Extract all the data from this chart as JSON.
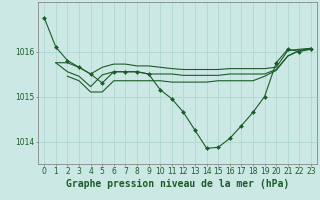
{
  "background_color": "#cce8e4",
  "grid_color": "#aad4cc",
  "line_color": "#1a5c28",
  "marker_color": "#1a5c28",
  "xlabel": "Graphe pression niveau de la mer (hPa)",
  "xlabel_fontsize": 7,
  "tick_fontsize": 5.5,
  "xlim": [
    -0.5,
    23.5
  ],
  "ylim": [
    1013.5,
    1017.1
  ],
  "yticks": [
    1014,
    1015,
    1016
  ],
  "xticks": [
    0,
    1,
    2,
    3,
    4,
    5,
    6,
    7,
    8,
    9,
    10,
    11,
    12,
    13,
    14,
    15,
    16,
    17,
    18,
    19,
    20,
    21,
    22,
    23
  ],
  "series": [
    {
      "x": [
        0,
        1,
        2,
        3,
        4,
        5,
        6,
        7,
        8,
        9,
        10,
        11,
        12,
        13,
        14,
        15,
        16,
        17,
        18,
        19,
        20,
        21,
        22,
        23
      ],
      "y": [
        1016.75,
        1016.1,
        1015.8,
        1015.65,
        1015.5,
        1015.3,
        1015.55,
        1015.55,
        1015.55,
        1015.5,
        1015.15,
        1014.95,
        1014.65,
        1014.25,
        1013.85,
        1013.87,
        1014.07,
        1014.35,
        1014.65,
        1015.0,
        1015.75,
        1016.05,
        1016.0,
        1016.05
      ],
      "marker": "D",
      "markersize": 2.0,
      "linewidth": 0.8
    },
    {
      "x": [
        1,
        2,
        3,
        4,
        5,
        6,
        7,
        8,
        9,
        10,
        11,
        12,
        13,
        14,
        15,
        16,
        17,
        18,
        19,
        20,
        21,
        22,
        23
      ],
      "y": [
        1015.75,
        1015.75,
        1015.65,
        1015.5,
        1015.65,
        1015.72,
        1015.72,
        1015.68,
        1015.68,
        1015.65,
        1015.62,
        1015.6,
        1015.6,
        1015.6,
        1015.6,
        1015.62,
        1015.62,
        1015.62,
        1015.62,
        1015.65,
        1016.02,
        1016.05,
        1016.07
      ],
      "marker": null,
      "markersize": 0,
      "linewidth": 0.8
    },
    {
      "x": [
        1,
        2,
        3,
        4,
        5,
        6,
        7,
        8,
        9,
        10,
        11,
        12,
        13,
        14,
        15,
        16,
        17,
        18,
        19,
        20,
        21,
        22,
        23
      ],
      "y": [
        1015.75,
        1015.55,
        1015.45,
        1015.22,
        1015.48,
        1015.55,
        1015.55,
        1015.55,
        1015.5,
        1015.5,
        1015.5,
        1015.47,
        1015.47,
        1015.47,
        1015.47,
        1015.5,
        1015.5,
        1015.5,
        1015.5,
        1015.6,
        1015.9,
        1016.02,
        1016.07
      ],
      "marker": null,
      "markersize": 0,
      "linewidth": 0.8
    },
    {
      "x": [
        2,
        3,
        4,
        5,
        6,
        7,
        8,
        9,
        10,
        11,
        12,
        13,
        14,
        15,
        16,
        17,
        18,
        19,
        20,
        21,
        22,
        23
      ],
      "y": [
        1015.45,
        1015.35,
        1015.1,
        1015.1,
        1015.35,
        1015.35,
        1015.35,
        1015.35,
        1015.35,
        1015.32,
        1015.32,
        1015.32,
        1015.32,
        1015.35,
        1015.35,
        1015.35,
        1015.35,
        1015.45,
        1015.58,
        1015.9,
        1016.02,
        1016.07
      ],
      "marker": null,
      "markersize": 0,
      "linewidth": 0.8
    }
  ]
}
